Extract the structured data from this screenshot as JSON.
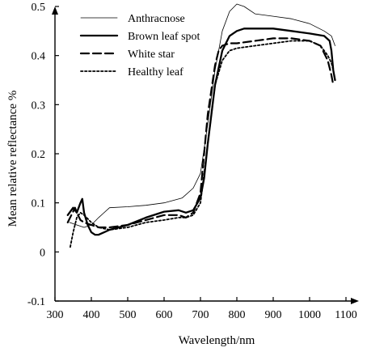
{
  "chart_data": {
    "type": "line",
    "title": "",
    "xlabel": "Wavelength/nm",
    "ylabel": "Mean relative reflectance %",
    "xlim": [
      300,
      1100
    ],
    "ylim": [
      -0.1,
      0.5
    ],
    "xticks": [
      "300",
      "400",
      "500",
      "600",
      "700",
      "800",
      "900",
      "1000",
      "1100"
    ],
    "yticks": [
      "-0.1",
      "0",
      "0.1",
      "0.2",
      "0.3",
      "0.4",
      "0.5"
    ],
    "grid": false,
    "legend_position": "top-left",
    "series": [
      {
        "name": "Anthracnose",
        "style": "thin-solid",
        "x": [
          340,
          360,
          380,
          400,
          420,
          450,
          500,
          550,
          600,
          650,
          680,
          700,
          720,
          740,
          760,
          780,
          800,
          820,
          850,
          900,
          950,
          1000,
          1040,
          1060,
          1070
        ],
        "y": [
          0.06,
          0.055,
          0.05,
          0.055,
          0.07,
          0.09,
          0.092,
          0.095,
          0.1,
          0.11,
          0.13,
          0.16,
          0.26,
          0.37,
          0.45,
          0.49,
          0.505,
          0.5,
          0.485,
          0.48,
          0.475,
          0.465,
          0.45,
          0.44,
          0.42
        ]
      },
      {
        "name": "Brown leaf spot",
        "style": "thick-solid",
        "x": [
          335,
          350,
          360,
          370,
          375,
          380,
          390,
          400,
          410,
          420,
          450,
          500,
          550,
          600,
          640,
          660,
          680,
          700,
          710,
          720,
          740,
          760,
          780,
          800,
          820,
          850,
          900,
          950,
          1000,
          1040,
          1055,
          1060,
          1065,
          1070
        ],
        "y": [
          0.075,
          0.09,
          0.08,
          0.1,
          0.108,
          0.08,
          0.055,
          0.04,
          0.035,
          0.035,
          0.045,
          0.055,
          0.07,
          0.082,
          0.085,
          0.08,
          0.085,
          0.11,
          0.15,
          0.22,
          0.34,
          0.41,
          0.44,
          0.45,
          0.455,
          0.455,
          0.455,
          0.45,
          0.445,
          0.44,
          0.43,
          0.41,
          0.37,
          0.35
        ]
      },
      {
        "name": "White star",
        "style": "dashed",
        "x": [
          335,
          345,
          355,
          360,
          370,
          380,
          400,
          420,
          450,
          500,
          550,
          600,
          640,
          660,
          680,
          700,
          720,
          740,
          750,
          760,
          780,
          800,
          850,
          900,
          950,
          1000,
          1030,
          1050,
          1060,
          1065
        ],
        "y": [
          0.06,
          0.075,
          0.09,
          0.08,
          0.065,
          0.06,
          0.055,
          0.05,
          0.05,
          0.055,
          0.065,
          0.075,
          0.075,
          0.07,
          0.08,
          0.12,
          0.28,
          0.38,
          0.41,
          0.42,
          0.425,
          0.425,
          0.43,
          0.435,
          0.435,
          0.43,
          0.42,
          0.39,
          0.36,
          0.34
        ]
      },
      {
        "name": "Healthy leaf",
        "style": "dotted",
        "x": [
          342,
          350,
          360,
          370,
          380,
          400,
          420,
          450,
          500,
          550,
          600,
          640,
          660,
          680,
          700,
          720,
          740,
          760,
          780,
          800,
          850,
          900,
          950,
          1000,
          1030,
          1050,
          1060,
          1065
        ],
        "y": [
          0.01,
          0.04,
          0.07,
          0.08,
          0.075,
          0.06,
          0.05,
          0.045,
          0.05,
          0.06,
          0.065,
          0.07,
          0.07,
          0.075,
          0.1,
          0.22,
          0.34,
          0.39,
          0.41,
          0.415,
          0.42,
          0.425,
          0.43,
          0.43,
          0.42,
          0.4,
          0.385,
          0.37
        ]
      }
    ]
  }
}
